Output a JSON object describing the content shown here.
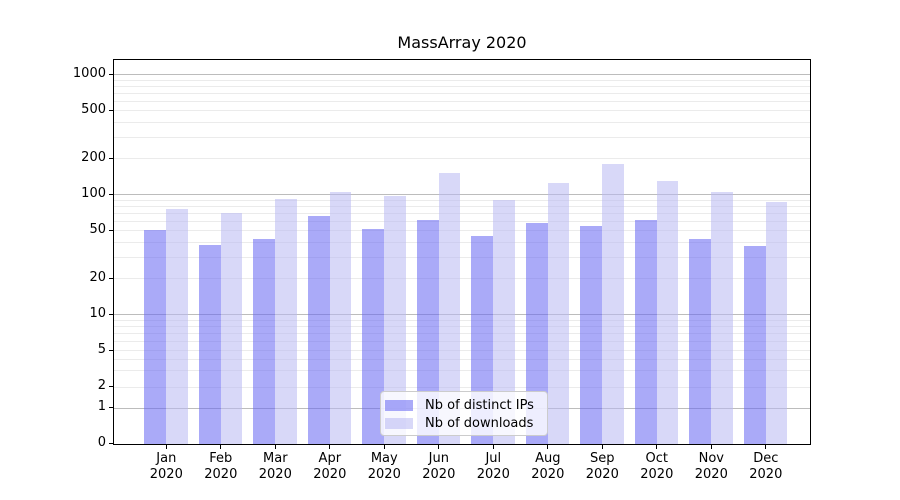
{
  "figure": {
    "title": "MassArray 2020"
  },
  "chart_data": {
    "type": "bar",
    "title": "MassArray 2020",
    "categories": [
      "Jan 2020",
      "Feb 2020",
      "Mar 2020",
      "Apr 2020",
      "May 2020",
      "Jun 2020",
      "Jul 2020",
      "Aug 2020",
      "Sep 2020",
      "Oct 2020",
      "Nov 2020",
      "Dec 2020"
    ],
    "series": [
      {
        "name": "Nb of distinct IPs",
        "color": "#6464f2",
        "alpha": 0.55,
        "perceived_color": "#aaaaf6",
        "values": [
          51,
          38,
          43,
          66,
          52,
          61,
          45,
          58,
          55,
          62,
          43,
          37
        ]
      },
      {
        "name": "Nb of downloads",
        "color": "#b8b8f2",
        "alpha": 0.55,
        "perceived_color": "#d8d8f8",
        "values": [
          76,
          70,
          92,
          105,
          97,
          152,
          90,
          125,
          180,
          130,
          105,
          87
        ]
      }
    ],
    "xlabel": "",
    "ylabel": "",
    "y_ticks": [
      0,
      1,
      2,
      5,
      10,
      20,
      50,
      100,
      200,
      500,
      1000
    ],
    "y_minor_ticks": [
      3,
      4,
      6,
      7,
      8,
      9,
      30,
      40,
      60,
      70,
      80,
      90,
      300,
      400,
      600,
      700,
      800,
      900
    ],
    "y_major_gridlines": [
      1,
      10,
      100,
      1000
    ],
    "y_scale": "pseudo-log",
    "ylim": [
      0,
      1300
    ],
    "grid": true,
    "legend_position": "lower-center"
  },
  "colors": {
    "background": "#ffffff",
    "grid_minor": "#ebebeb",
    "grid_major": "#bcbcbc",
    "axis": "#000000",
    "text": "#000000",
    "legend_border": "#cccccc",
    "legend_background": "#ffffff"
  }
}
